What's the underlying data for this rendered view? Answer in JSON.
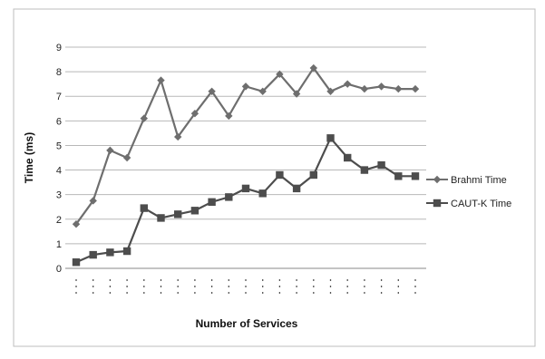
{
  "chart_data": {
    "type": "line",
    "title": "",
    "xlabel": "Number of Services",
    "ylabel": "Time (ms)",
    "ylim": [
      0,
      9
    ],
    "y_ticks": [
      "0",
      "1",
      "2",
      "3",
      "4",
      "5",
      "6",
      "7",
      "8",
      "9"
    ],
    "grid": "horizontal",
    "legend_position": "right",
    "x": [
      1,
      2,
      3,
      4,
      5,
      6,
      7,
      8,
      9,
      10,
      11,
      12,
      13,
      14,
      15,
      16,
      17,
      18,
      19,
      20,
      21
    ],
    "series": [
      {
        "name": "Brahmi Time",
        "marker": "diamond",
        "color": "#6e6e6e",
        "values": [
          1.8,
          2.75,
          4.8,
          4.5,
          6.1,
          7.65,
          5.35,
          6.3,
          7.2,
          6.2,
          7.4,
          7.2,
          7.9,
          7.1,
          8.15,
          7.2,
          7.5,
          7.3,
          7.4,
          7.3,
          7.3
        ]
      },
      {
        "name": "CAUT-K Time",
        "marker": "square",
        "color": "#4d4d4d",
        "values": [
          0.25,
          0.55,
          0.65,
          0.7,
          2.45,
          2.05,
          2.2,
          2.35,
          2.7,
          2.9,
          3.25,
          3.05,
          3.8,
          3.25,
          3.8,
          5.3,
          4.5,
          4.0,
          4.2,
          3.75,
          3.75
        ]
      }
    ]
  }
}
